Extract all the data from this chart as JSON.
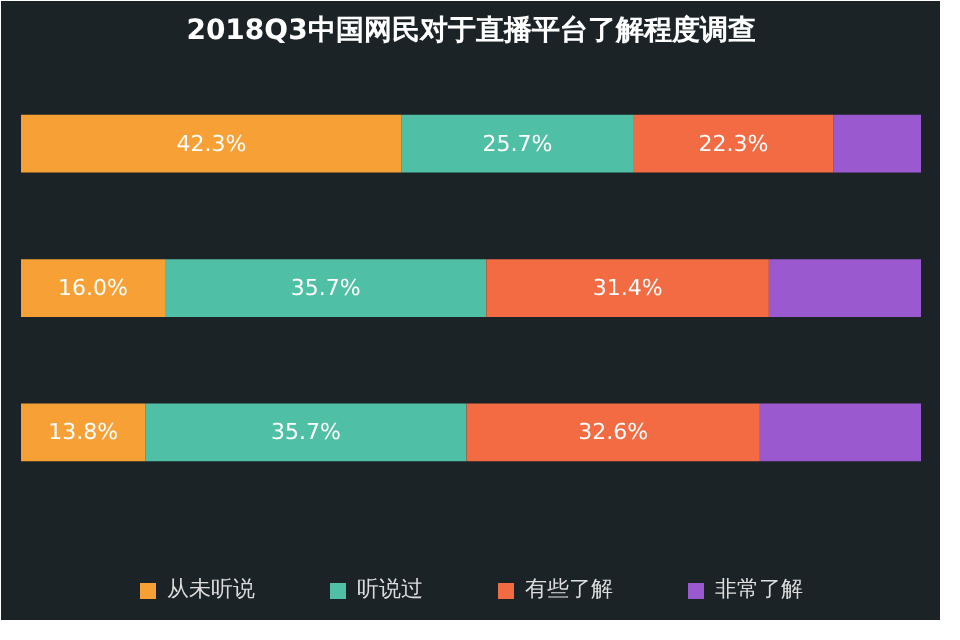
{
  "chart_data": {
    "type": "bar",
    "orientation": "horizontal",
    "stacked": true,
    "title": "2018Q3中国网民对于直播平台了解程度调查",
    "categories": [
      null,
      null,
      null
    ],
    "series": [
      {
        "name": "从未听说",
        "color": "#f7a035",
        "values": [
          42.3,
          16.0,
          13.8
        ],
        "value_labels": [
          "42.3%",
          "16.0%",
          "13.8%"
        ]
      },
      {
        "name": "听说过",
        "color": "#4fbfa5",
        "values": [
          25.7,
          35.7,
          35.7
        ],
        "value_labels": [
          "25.7%",
          "35.7%",
          "35.7%"
        ]
      },
      {
        "name": "有些了解",
        "color": "#f26b43",
        "values": [
          22.3,
          31.4,
          32.6
        ],
        "value_labels": [
          "22.3%",
          "31.4%",
          "32.6%"
        ]
      },
      {
        "name": "非常了解",
        "color": "#9b59d0",
        "values": [
          9.7,
          16.9,
          17.9
        ],
        "value_labels": [
          null,
          null,
          null
        ]
      }
    ],
    "legend": "bottom",
    "tick_labels": false
  }
}
